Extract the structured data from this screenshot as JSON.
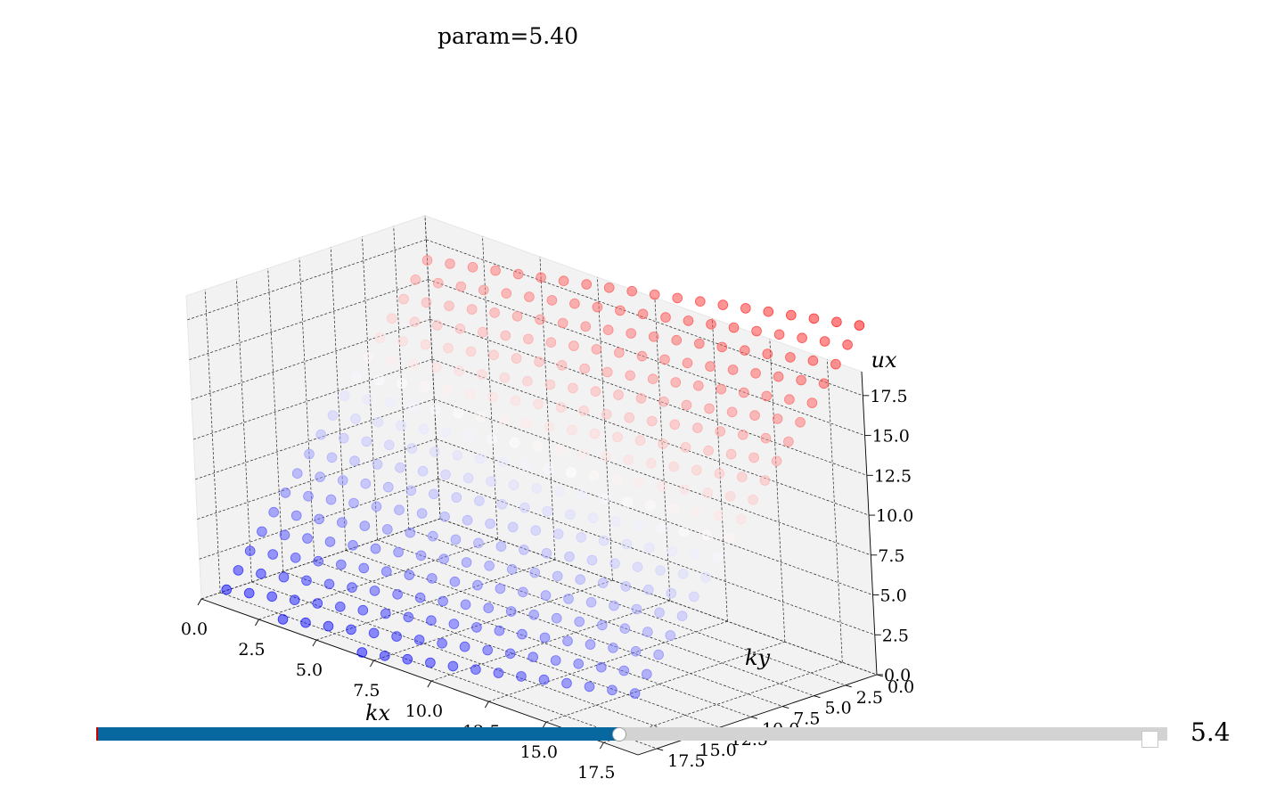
{
  "title": "param=5.40",
  "slider": {
    "value_label": "5.4",
    "value": 5.4,
    "fill_fraction": 0.488
  },
  "colors": {
    "slider_fill": "#06689e",
    "slider_track": "#d3d3d3",
    "pane": "#f2f2f2",
    "scatter_low": "#0000ff",
    "scatter_high": "#ff0000"
  },
  "chart_data": {
    "type": "scatter",
    "projection": "3d",
    "colormap": "bwr",
    "marker_alpha": 0.5,
    "grid": true,
    "xlabel": "kx",
    "ylabel": "ky",
    "zlabel": "ux",
    "xlim": [
      0,
      19
    ],
    "ylim": [
      0,
      19
    ],
    "zlim": [
      0,
      19
    ],
    "xticks": [
      "0.0",
      "2.5",
      "5.0",
      "7.5",
      "10.0",
      "12.5",
      "15.0",
      "17.5"
    ],
    "yticks": [
      "0.0",
      "2.5",
      "5.0",
      "7.5",
      "10.0",
      "12.5",
      "15.0",
      "17.5"
    ],
    "zticks": [
      "0.0",
      "2.5",
      "5.0",
      "7.5",
      "10.0",
      "12.5",
      "15.0",
      "17.5"
    ],
    "xtick_values": [
      0,
      2.5,
      5,
      7.5,
      10,
      12.5,
      15,
      17.5
    ],
    "ytick_values": [
      0,
      2.5,
      5,
      7.5,
      10,
      12.5,
      15,
      17.5
    ],
    "ztick_values": [
      0,
      2.5,
      5,
      7.5,
      10,
      12.5,
      15,
      17.5
    ],
    "surface_grid": {
      "kx": [
        0,
        19
      ],
      "ky": [
        0,
        19
      ],
      "n": 20
    },
    "surface_model": "ux = 16.2 - 0.95*ky + 0.3*kx, clipped at 0",
    "floor_cluster": {
      "kx": [
        12,
        19
      ],
      "ky": [
        3,
        19
      ],
      "ux": 0
    }
  }
}
